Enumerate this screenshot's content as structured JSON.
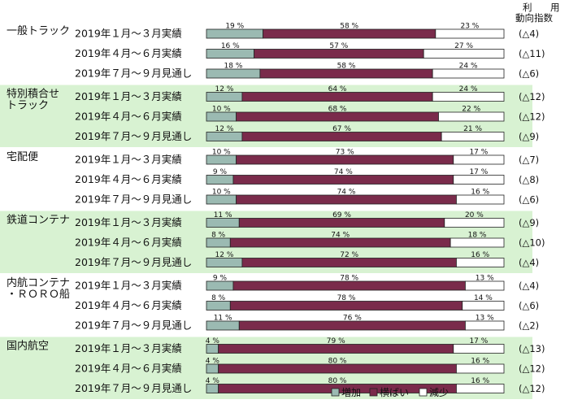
{
  "chart_data": {
    "type": "bar",
    "stacked": true,
    "orientation": "horizontal",
    "index_header": [
      "利",
      "用",
      "動向指数"
    ],
    "legend_position": "bottom",
    "series": [
      {
        "name": "増加",
        "color": "#9bbab2"
      },
      {
        "name": "横ばい",
        "color": "#7a2b4b"
      },
      {
        "name": "減少",
        "color": "#ffffff"
      }
    ],
    "groups": [
      {
        "name": [
          "一般トラック"
        ],
        "rows": [
          {
            "period": "2019年１月～３月実績",
            "values": [
              19,
              58,
              23
            ],
            "index": "(△4)"
          },
          {
            "period": "2019年４月～６月実績",
            "values": [
              16,
              57,
              27
            ],
            "index": "(△11)"
          },
          {
            "period": "2019年７月～９月見通し",
            "values": [
              18,
              58,
              24
            ],
            "index": "(△6)"
          }
        ]
      },
      {
        "name": [
          "特別積合せ",
          "トラック"
        ],
        "rows": [
          {
            "period": "2019年１月～３月実績",
            "values": [
              12,
              64,
              24
            ],
            "index": "(△12)"
          },
          {
            "period": "2019年４月～６月実績",
            "values": [
              10,
              68,
              22
            ],
            "index": "(△12)"
          },
          {
            "period": "2019年７月～９月見通し",
            "values": [
              12,
              67,
              21
            ],
            "index": "(△9)"
          }
        ]
      },
      {
        "name": [
          "宅配便"
        ],
        "rows": [
          {
            "period": "2019年１月～３月実績",
            "values": [
              10,
              73,
              17
            ],
            "index": "(△7)"
          },
          {
            "period": "2019年４月～６月実績",
            "values": [
              9,
              74,
              17
            ],
            "index": "(△8)"
          },
          {
            "period": "2019年７月～９月見通し",
            "values": [
              10,
              74,
              16
            ],
            "index": "(△6)"
          }
        ]
      },
      {
        "name": [
          "鉄道コンテナ"
        ],
        "rows": [
          {
            "period": "2019年１月～３月実績",
            "values": [
              11,
              69,
              20
            ],
            "index": "(△9)"
          },
          {
            "period": "2019年４月～６月実績",
            "values": [
              8,
              74,
              18
            ],
            "index": "(△10)"
          },
          {
            "period": "2019年７月～９月見通し",
            "values": [
              12,
              72,
              16
            ],
            "index": "(△4)"
          }
        ]
      },
      {
        "name": [
          "内航コンテナ",
          "・ＲＯＲＯ船"
        ],
        "rows": [
          {
            "period": "2019年１月～３月実績",
            "values": [
              9,
              78,
              13
            ],
            "index": "(△4)"
          },
          {
            "period": "2019年４月～６月実績",
            "values": [
              8,
              78,
              14
            ],
            "index": "(△6)"
          },
          {
            "period": "2019年７月～９月見通し",
            "values": [
              11,
              76,
              13
            ],
            "index": "(△2)"
          }
        ]
      },
      {
        "name": [
          "国内航空"
        ],
        "rows": [
          {
            "period": "2019年１月～３月実績",
            "values": [
              4,
              79,
              17
            ],
            "index": "(△13)"
          },
          {
            "period": "2019年４月～６月実績",
            "values": [
              4,
              80,
              16
            ],
            "index": "(△12)"
          },
          {
            "period": "2019年７月～９月見通し",
            "values": [
              4,
              80,
              16
            ],
            "index": "(△12)"
          }
        ]
      }
    ]
  }
}
